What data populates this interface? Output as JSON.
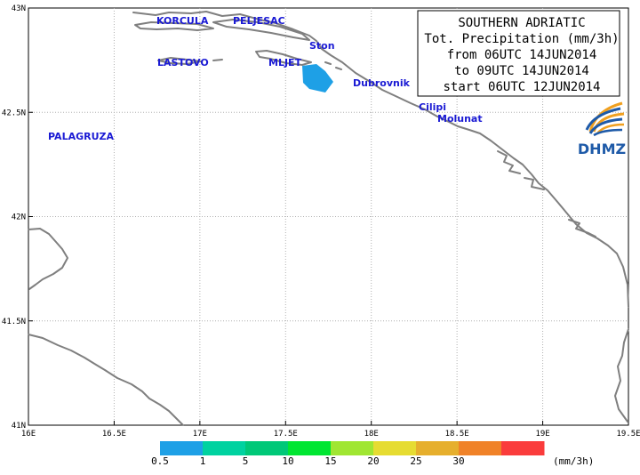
{
  "title": {
    "lines": [
      "SOUTHERN  ADRIATIC",
      "Tot. Precipitation (mm/3h)",
      "from 06UTC 14JUN2014",
      "to 09UTC 14JUN2014",
      "start 06UTC 12JUN2014"
    ]
  },
  "logo": {
    "text": "DHMZ",
    "icon": "dhmz-swirl-logo"
  },
  "axes": {
    "x_ticks": [
      "16E",
      "16.5E",
      "17E",
      "17.5E",
      "18E",
      "18.5E",
      "19E",
      "19.5E"
    ],
    "y_ticks": [
      "43N",
      "42.5N",
      "42N",
      "41.5N",
      "41N"
    ],
    "x_range": [
      16,
      19.5
    ],
    "y_range": [
      41,
      43
    ],
    "grid": true
  },
  "places": [
    {
      "name": "KORCULA"
    },
    {
      "name": "PELJESAC"
    },
    {
      "name": "Ston"
    },
    {
      "name": "LASTOVO"
    },
    {
      "name": "MLJET"
    },
    {
      "name": "Dubrovnik"
    },
    {
      "name": "Cilipi"
    },
    {
      "name": "Molunat"
    },
    {
      "name": "PALAGRUZA"
    }
  ],
  "legend": {
    "unit": "(mm/3h)",
    "thresholds": [
      "0.5",
      "1",
      "5",
      "10",
      "15",
      "20",
      "25",
      "30"
    ],
    "colors": [
      "#1ea0e6",
      "#00d2a0",
      "#00c878",
      "#00e632",
      "#a0e632",
      "#e6dc32",
      "#e6af2d",
      "#f08228",
      "#fa3c3c"
    ]
  },
  "colors": {
    "coastline": "#7f7f7f",
    "grid": "#b0b0b0",
    "place_label": "#1a1ad4",
    "precip_area": "#1ea0e6"
  }
}
